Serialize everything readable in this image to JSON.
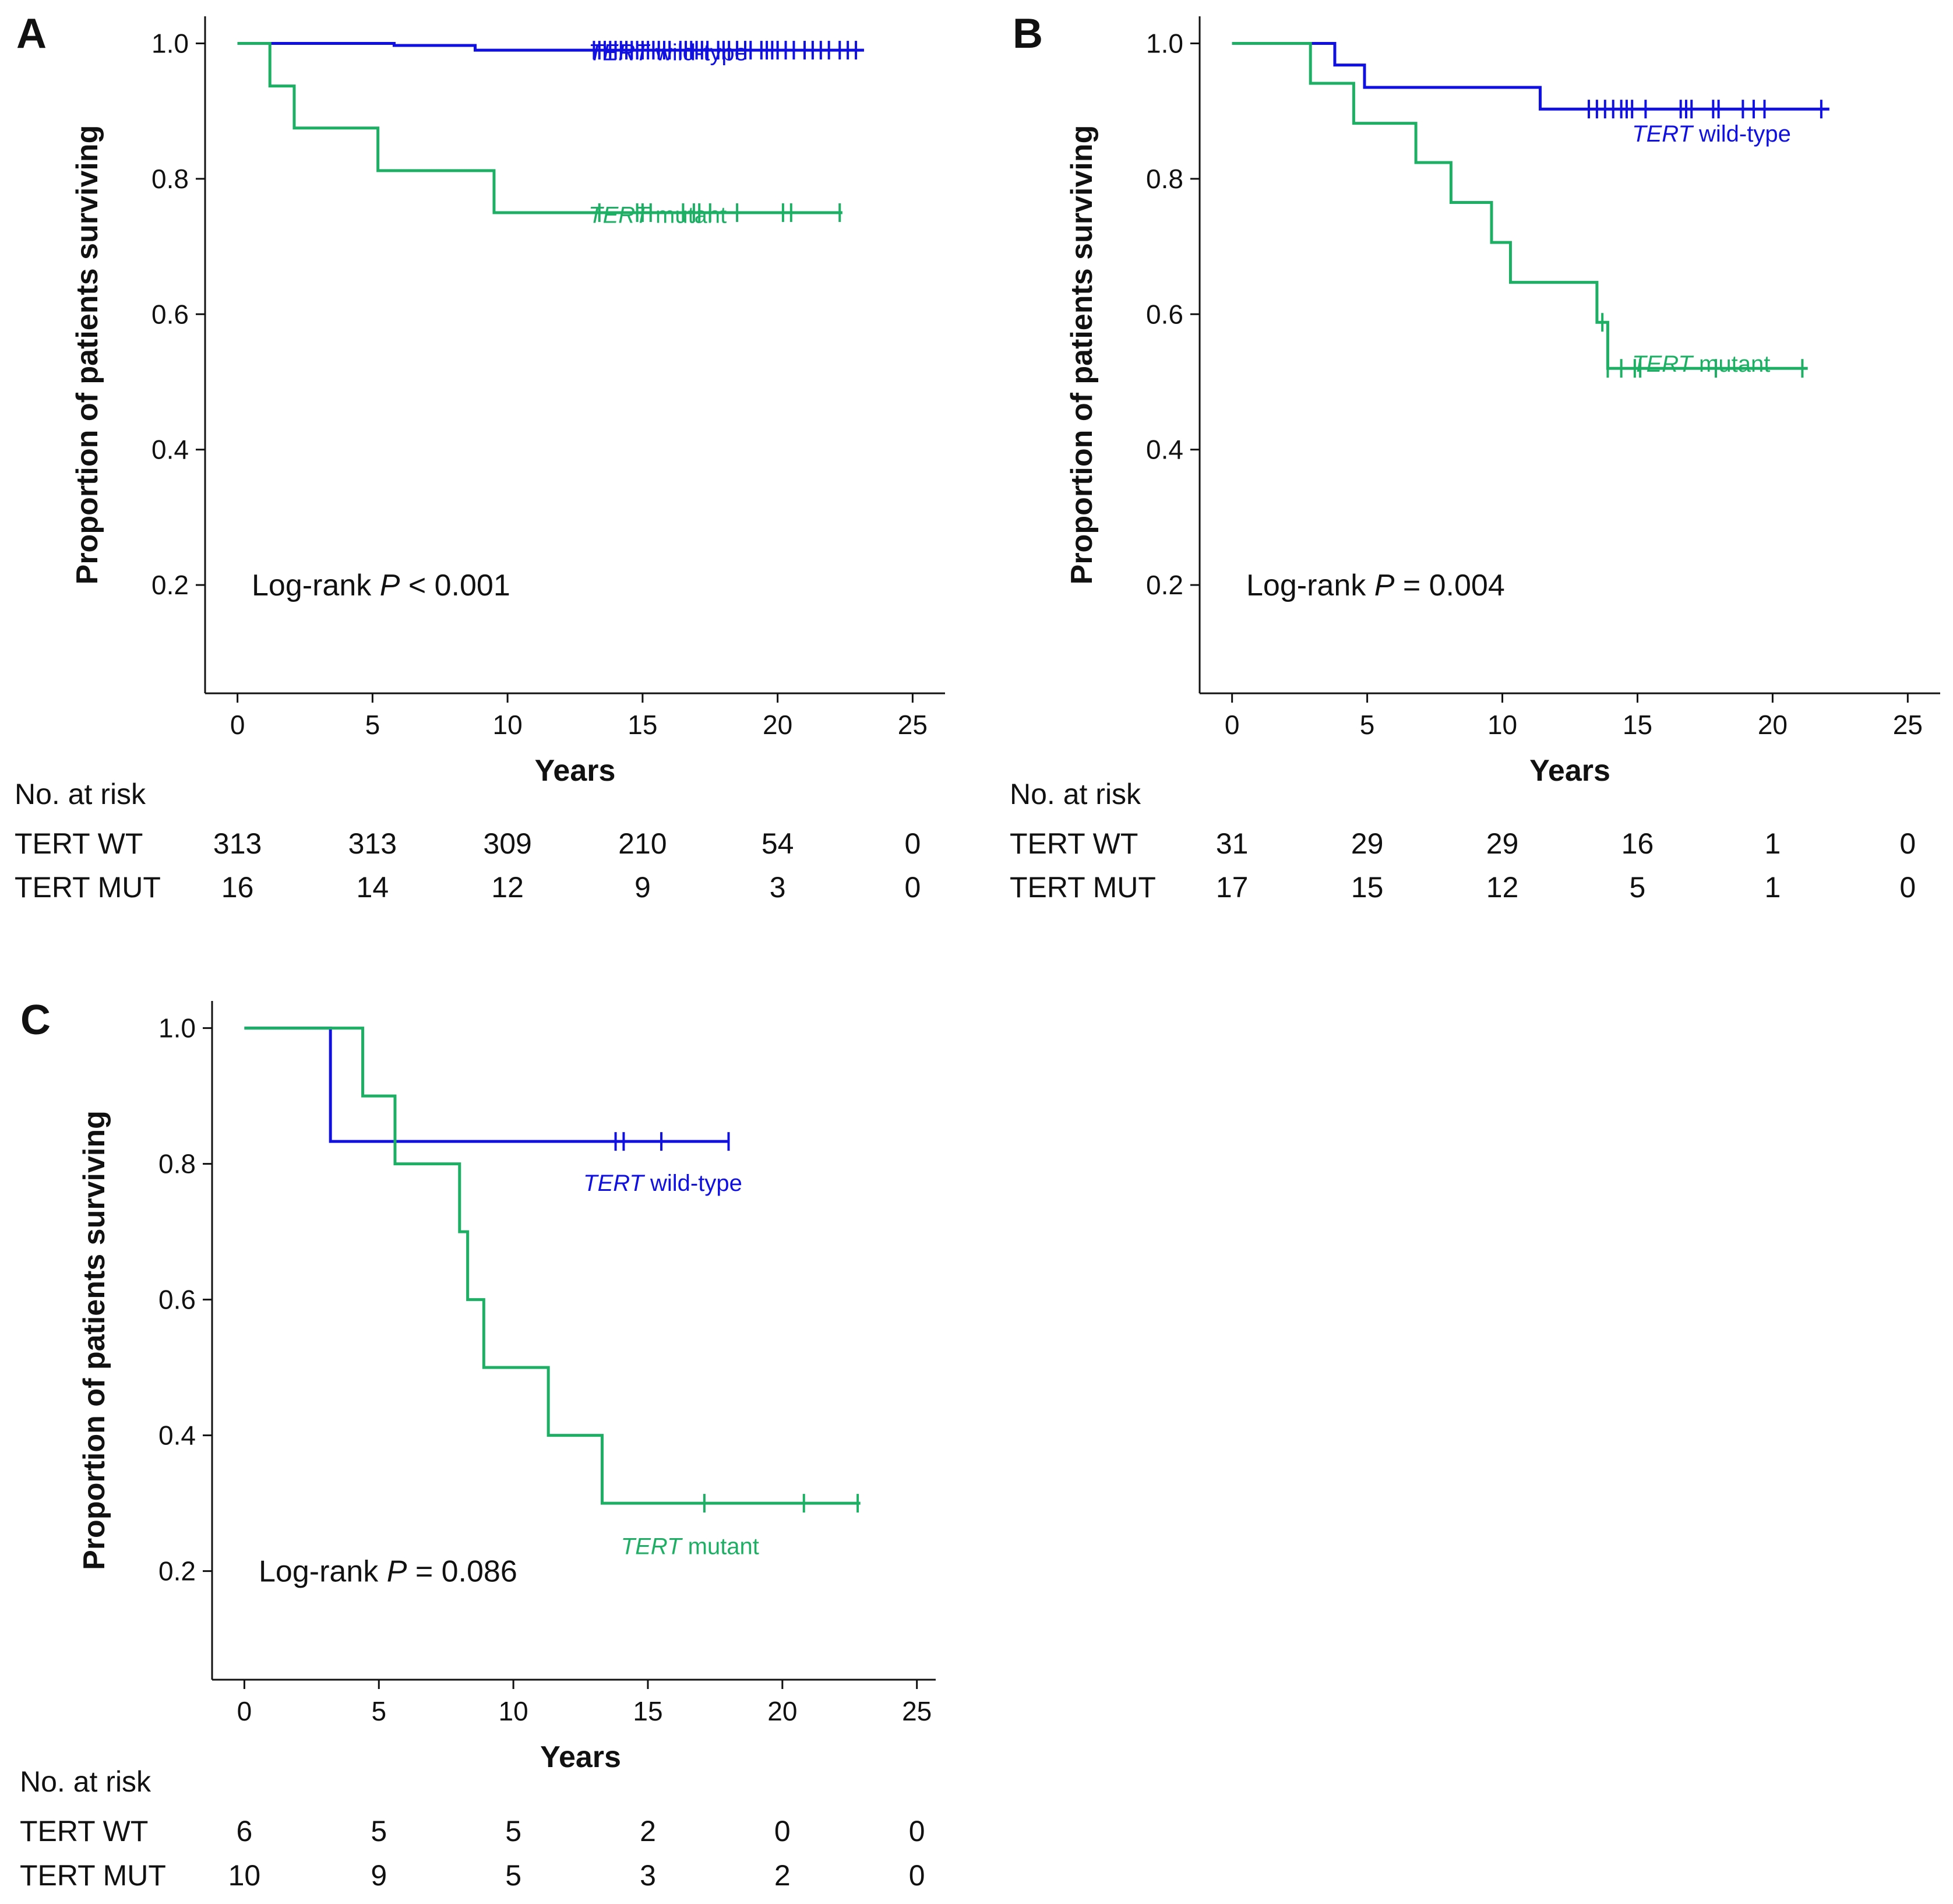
{
  "chart_data": [
    {
      "type": "line",
      "panel": "A",
      "xlabel": "Years",
      "ylabel": "Proportion of patients surviving",
      "xlim": [
        -1.2,
        26.2
      ],
      "ylim": [
        0.04,
        1.04
      ],
      "xticks": [
        0,
        5,
        10,
        15,
        20,
        25
      ],
      "yticks": [
        0.2,
        0.4,
        0.6,
        0.8,
        1.0
      ],
      "tick_labels_x": [
        "0",
        "5",
        "10",
        "15",
        "20",
        "25"
      ],
      "tick_labels_y": [
        "0.2",
        "0.4",
        "0.6",
        "0.8",
        "1.0"
      ],
      "pvalue": {
        "prefix": "Log-rank ",
        "p": "P",
        "suffix": " < 0.001"
      },
      "series": [
        {
          "name": "TERT wild-type",
          "label_italic": "TERT",
          "label_rest": " wild-type",
          "label_pos": [
            13,
            0.975
          ],
          "color": "#1010E0",
          "steps": [
            [
              0,
              1.0
            ],
            [
              5.8,
              0.997
            ],
            [
              8.8,
              0.99
            ],
            [
              23.2,
              0.99
            ]
          ],
          "censor": [
            13.2,
            13.4,
            13.6,
            13.8,
            14.0,
            14.2,
            14.4,
            14.6,
            14.8,
            15.0,
            15.2,
            15.4,
            15.6,
            15.8,
            16.0,
            16.4,
            16.6,
            16.8,
            17.0,
            17.2,
            17.4,
            17.8,
            18.0,
            18.2,
            18.5,
            18.8,
            19.0,
            19.4,
            19.6,
            19.8,
            20.0,
            20.3,
            20.6,
            21.0,
            21.3,
            21.6,
            21.9,
            22.3,
            22.6,
            22.9
          ]
        },
        {
          "name": "TERT mutant",
          "label_italic": "TERT",
          "label_rest": " mutant",
          "label_pos": [
            13,
            0.735
          ],
          "color": "#1DB064",
          "steps": [
            [
              0,
              1.0
            ],
            [
              1.2,
              0.937
            ],
            [
              2.1,
              0.875
            ],
            [
              5.2,
              0.812
            ],
            [
              9.5,
              0.75
            ],
            [
              22.4,
              0.75
            ]
          ],
          "censor": [
            13.4,
            14.8,
            15.0,
            15.3,
            16.5,
            16.9,
            17.1,
            17.5,
            18.5,
            20.2,
            20.5,
            22.3
          ]
        }
      ],
      "risk_table": {
        "title": "No. at risk",
        "rows": [
          {
            "label": "TERT WT",
            "values": [
              "313",
              "313",
              "309",
              "210",
              "54",
              "0"
            ]
          },
          {
            "label": "TERT MUT",
            "values": [
              "16",
              "14",
              "12",
              "9",
              "3",
              "0"
            ]
          }
        ]
      }
    },
    {
      "type": "line",
      "panel": "B",
      "xlabel": "Years",
      "ylabel": "Proportion of patients surviving",
      "xlim": [
        -1.2,
        26.2
      ],
      "ylim": [
        0.04,
        1.04
      ],
      "xticks": [
        0,
        5,
        10,
        15,
        20,
        25
      ],
      "yticks": [
        0.2,
        0.4,
        0.6,
        0.8,
        1.0
      ],
      "tick_labels_x": [
        "0",
        "5",
        "10",
        "15",
        "20",
        "25"
      ],
      "tick_labels_y": [
        "0.2",
        "0.4",
        "0.6",
        "0.8",
        "1.0"
      ],
      "pvalue": {
        "prefix": "Log-rank ",
        "p": "P",
        "suffix": " = 0.004"
      },
      "series": [
        {
          "name": "TERT wild-type",
          "label_italic": "TERT",
          "label_rest": " wild-type",
          "label_pos": [
            14.8,
            0.855
          ],
          "color": "#1010E0",
          "steps": [
            [
              0,
              1.0
            ],
            [
              3.8,
              0.968
            ],
            [
              4.9,
              0.935
            ],
            [
              11.4,
              0.903
            ],
            [
              22.1,
              0.903
            ]
          ],
          "censor": [
            13.2,
            13.5,
            13.8,
            14.1,
            14.4,
            14.6,
            14.8,
            15.3,
            16.6,
            16.8,
            17.0,
            17.8,
            18.0,
            18.9,
            19.3,
            19.7,
            21.8
          ]
        },
        {
          "name": "TERT mutant",
          "label_italic": "TERT",
          "label_rest": " mutant",
          "label_pos": [
            14.8,
            0.515
          ],
          "color": "#1DB064",
          "steps": [
            [
              0,
              1.0
            ],
            [
              2.9,
              0.941
            ],
            [
              4.5,
              0.882
            ],
            [
              6.8,
              0.824
            ],
            [
              8.1,
              0.765
            ],
            [
              9.6,
              0.706
            ],
            [
              10.3,
              0.647
            ],
            [
              13.5,
              0.588
            ],
            [
              13.9,
              0.52
            ],
            [
              21.3,
              0.52
            ]
          ],
          "censor": [
            13.7,
            13.9,
            14.4,
            14.9,
            15.1,
            17.9,
            21.1
          ]
        }
      ],
      "risk_table": {
        "title": "No. at risk",
        "rows": [
          {
            "label": "TERT WT",
            "values": [
              "31",
              "29",
              "29",
              "16",
              "1",
              "0"
            ]
          },
          {
            "label": "TERT MUT",
            "values": [
              "17",
              "15",
              "12",
              "5",
              "1",
              "0"
            ]
          }
        ]
      }
    },
    {
      "type": "line",
      "panel": "C",
      "xlabel": "Years",
      "ylabel": "Proportion of patients surviving",
      "xlim": [
        -1.2,
        25.7
      ],
      "ylim": [
        0.04,
        1.04
      ],
      "xticks": [
        0,
        5,
        10,
        15,
        20,
        25
      ],
      "yticks": [
        0.2,
        0.4,
        0.6,
        0.8,
        1.0
      ],
      "tick_labels_x": [
        "0",
        "5",
        "10",
        "15",
        "20",
        "25"
      ],
      "tick_labels_y": [
        "0.2",
        "0.4",
        "0.6",
        "0.8",
        "1.0"
      ],
      "pvalue": {
        "prefix": "Log-rank ",
        "p": "P",
        "suffix": " = 0.086"
      },
      "series": [
        {
          "name": "TERT wild-type",
          "label_italic": "TERT",
          "label_rest": " wild-type",
          "label_pos": [
            12.6,
            0.76
          ],
          "color": "#1010E0",
          "steps": [
            [
              0,
              1.0
            ],
            [
              3.2,
              0.833
            ],
            [
              18.0,
              0.833
            ]
          ],
          "censor": [
            13.8,
            14.1,
            15.5,
            18.0
          ]
        },
        {
          "name": "TERT mutant",
          "label_italic": "TERT",
          "label_rest": " mutant",
          "label_pos": [
            14.0,
            0.225
          ],
          "color": "#1DB064",
          "steps": [
            [
              0,
              1.0
            ],
            [
              4.4,
              0.9
            ],
            [
              5.6,
              0.8
            ],
            [
              8.0,
              0.7
            ],
            [
              8.3,
              0.6
            ],
            [
              8.9,
              0.5
            ],
            [
              11.3,
              0.4
            ],
            [
              13.3,
              0.3
            ],
            [
              22.9,
              0.3
            ]
          ],
          "censor": [
            17.1,
            20.8,
            22.8
          ]
        }
      ],
      "risk_table": {
        "title": "No. at risk",
        "rows": [
          {
            "label": "TERT WT",
            "values": [
              "6",
              "5",
              "5",
              "2",
              "0",
              "0"
            ]
          },
          {
            "label": "TERT MUT",
            "values": [
              "10",
              "9",
              "5",
              "3",
              "2",
              "0"
            ]
          }
        ]
      }
    }
  ]
}
